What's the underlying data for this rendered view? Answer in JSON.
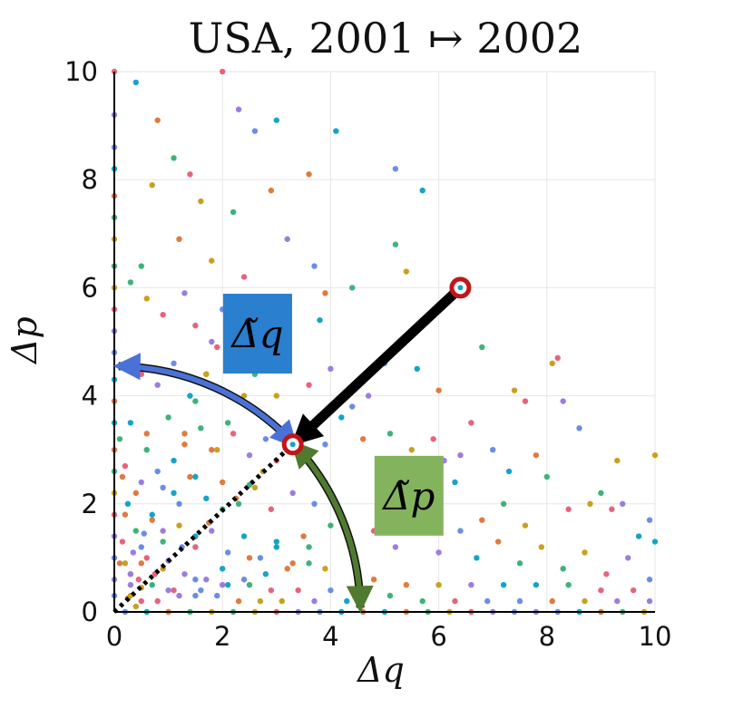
{
  "chart_data": {
    "type": "scatter",
    "title": "USA, 2001 ↦ 2002",
    "xlabel": "Δq",
    "ylabel": "Δp",
    "xlim": [
      0,
      10
    ],
    "ylim": [
      0,
      10
    ],
    "xticks": [
      "0",
      "2",
      "4",
      "6",
      "8",
      "10"
    ],
    "yticks": [
      "0",
      "2",
      "4",
      "6",
      "8",
      "10"
    ],
    "grid": true,
    "legend": "none",
    "palette": [
      "#e7637b",
      "#3db37a",
      "#13a5c7",
      "#9b7de0",
      "#c9a01f",
      "#e07a3f",
      "#6a8de8"
    ],
    "highlight_points": [
      {
        "x": 6.4,
        "y": 6.0
      },
      {
        "x": 3.3,
        "y": 3.1
      }
    ],
    "arrows": [
      {
        "from": [
          6.4,
          6.0
        ],
        "to": [
          3.35,
          3.15
        ],
        "color": "#000000"
      },
      {
        "center": [
          0,
          0
        ],
        "radius": 4.55,
        "from_deg": 43,
        "to_deg": 89,
        "color": "#4a72d6"
      },
      {
        "center": [
          0,
          0
        ],
        "radius": 4.55,
        "from_deg": 43,
        "to_deg": 1,
        "color": "#4f7a30"
      }
    ],
    "dotted_line": {
      "from": [
        0,
        0
      ],
      "to": [
        3.3,
        3.1
      ]
    },
    "annotations": [
      {
        "text": "Δ̃q",
        "x": 2.65,
        "y": 5.15,
        "color": "#2a7fce"
      },
      {
        "text": "Δ̃p",
        "x": 5.45,
        "y": 2.15,
        "color": "#84b35e"
      }
    ],
    "scatter_points": [
      {
        "x": 0.0,
        "y": 10.0
      },
      {
        "x": 0.0,
        "y": 9.2
      },
      {
        "x": 0.0,
        "y": 8.6
      },
      {
        "x": 0.0,
        "y": 8.2
      },
      {
        "x": 0.0,
        "y": 7.7
      },
      {
        "x": 0.0,
        "y": 7.3
      },
      {
        "x": 0.0,
        "y": 6.9
      },
      {
        "x": 0.0,
        "y": 6.4
      },
      {
        "x": 0.0,
        "y": 6.0
      },
      {
        "x": 0.0,
        "y": 5.6
      },
      {
        "x": 0.0,
        "y": 5.2
      },
      {
        "x": 0.0,
        "y": 4.8
      },
      {
        "x": 0.0,
        "y": 4.3
      },
      {
        "x": 0.0,
        "y": 3.9
      },
      {
        "x": 0.0,
        "y": 3.5
      },
      {
        "x": 0.0,
        "y": 3.0
      },
      {
        "x": 0.0,
        "y": 2.6
      },
      {
        "x": 0.0,
        "y": 2.2
      },
      {
        "x": 0.0,
        "y": 1.8
      },
      {
        "x": 0.0,
        "y": 1.4
      },
      {
        "x": 0.0,
        "y": 1.0
      },
      {
        "x": 0.0,
        "y": 0.6
      },
      {
        "x": 0.0,
        "y": 0.3
      },
      {
        "x": 0.4,
        "y": 9.8
      },
      {
        "x": 0.8,
        "y": 9.1
      },
      {
        "x": 1.1,
        "y": 8.4
      },
      {
        "x": 0.7,
        "y": 7.9
      },
      {
        "x": 1.4,
        "y": 8.1
      },
      {
        "x": 1.6,
        "y": 7.6
      },
      {
        "x": 2.0,
        "y": 10.0
      },
      {
        "x": 2.3,
        "y": 9.3
      },
      {
        "x": 2.6,
        "y": 8.9
      },
      {
        "x": 3.0,
        "y": 9.1
      },
      {
        "x": 2.9,
        "y": 7.8
      },
      {
        "x": 2.2,
        "y": 7.4
      },
      {
        "x": 1.2,
        "y": 6.9
      },
      {
        "x": 0.5,
        "y": 6.4
      },
      {
        "x": 1.8,
        "y": 6.5
      },
      {
        "x": 2.4,
        "y": 6.2
      },
      {
        "x": 3.2,
        "y": 6.9
      },
      {
        "x": 3.7,
        "y": 6.4
      },
      {
        "x": 4.1,
        "y": 8.9
      },
      {
        "x": 5.2,
        "y": 8.2
      },
      {
        "x": 5.7,
        "y": 7.8
      },
      {
        "x": 3.6,
        "y": 8.1
      },
      {
        "x": 0.3,
        "y": 6.1
      },
      {
        "x": 0.6,
        "y": 5.8
      },
      {
        "x": 0.9,
        "y": 5.5
      },
      {
        "x": 1.3,
        "y": 5.9
      },
      {
        "x": 1.5,
        "y": 5.3
      },
      {
        "x": 1.8,
        "y": 5.0
      },
      {
        "x": 2.0,
        "y": 5.6
      },
      {
        "x": 3.8,
        "y": 5.4
      },
      {
        "x": 3.9,
        "y": 5.9
      },
      {
        "x": 5.2,
        "y": 6.8
      },
      {
        "x": 5.4,
        "y": 6.3
      },
      {
        "x": 4.4,
        "y": 6.0
      },
      {
        "x": 0.2,
        "y": 4.6
      },
      {
        "x": 0.5,
        "y": 4.4
      },
      {
        "x": 0.8,
        "y": 4.2
      },
      {
        "x": 1.1,
        "y": 4.6
      },
      {
        "x": 1.4,
        "y": 4.0
      },
      {
        "x": 1.7,
        "y": 4.4
      },
      {
        "x": 2.0,
        "y": 4.1
      },
      {
        "x": 2.3,
        "y": 3.9
      },
      {
        "x": 2.6,
        "y": 4.4
      },
      {
        "x": 3.0,
        "y": 4.0
      },
      {
        "x": 3.6,
        "y": 4.2
      },
      {
        "x": 4.0,
        "y": 4.5
      },
      {
        "x": 4.4,
        "y": 3.8
      },
      {
        "x": 4.7,
        "y": 4.0
      },
      {
        "x": 5.0,
        "y": 4.6
      },
      {
        "x": 5.6,
        "y": 4.5
      },
      {
        "x": 6.0,
        "y": 4.1
      },
      {
        "x": 6.8,
        "y": 4.9
      },
      {
        "x": 7.4,
        "y": 4.1
      },
      {
        "x": 8.2,
        "y": 4.7
      },
      {
        "x": 8.1,
        "y": 4.6
      },
      {
        "x": 7.6,
        "y": 3.9
      },
      {
        "x": 8.3,
        "y": 3.9
      },
      {
        "x": 8.6,
        "y": 3.4
      },
      {
        "x": 0.3,
        "y": 3.5
      },
      {
        "x": 0.6,
        "y": 3.3
      },
      {
        "x": 1.0,
        "y": 3.6
      },
      {
        "x": 1.3,
        "y": 3.1
      },
      {
        "x": 1.6,
        "y": 3.4
      },
      {
        "x": 1.9,
        "y": 3.0
      },
      {
        "x": 2.2,
        "y": 3.3
      },
      {
        "x": 2.5,
        "y": 2.9
      },
      {
        "x": 2.8,
        "y": 3.2
      },
      {
        "x": 3.6,
        "y": 3.4
      },
      {
        "x": 3.9,
        "y": 3.1
      },
      {
        "x": 4.2,
        "y": 3.6
      },
      {
        "x": 4.6,
        "y": 3.2
      },
      {
        "x": 5.1,
        "y": 3.3
      },
      {
        "x": 5.5,
        "y": 3.0
      },
      {
        "x": 5.9,
        "y": 3.2
      },
      {
        "x": 6.1,
        "y": 2.8
      },
      {
        "x": 6.6,
        "y": 3.5
      },
      {
        "x": 6.4,
        "y": 2.9
      },
      {
        "x": 7.0,
        "y": 3.0
      },
      {
        "x": 7.3,
        "y": 2.6
      },
      {
        "x": 7.8,
        "y": 2.9
      },
      {
        "x": 8.0,
        "y": 2.5
      },
      {
        "x": 9.3,
        "y": 2.8
      },
      {
        "x": 9.0,
        "y": 2.2
      },
      {
        "x": 10.0,
        "y": 2.9
      },
      {
        "x": 0.2,
        "y": 2.7
      },
      {
        "x": 0.5,
        "y": 2.4
      },
      {
        "x": 0.8,
        "y": 2.6
      },
      {
        "x": 1.1,
        "y": 2.2
      },
      {
        "x": 1.4,
        "y": 2.5
      },
      {
        "x": 1.7,
        "y": 2.1
      },
      {
        "x": 2.0,
        "y": 2.4
      },
      {
        "x": 2.3,
        "y": 2.0
      },
      {
        "x": 2.6,
        "y": 2.3
      },
      {
        "x": 2.9,
        "y": 1.9
      },
      {
        "x": 3.3,
        "y": 2.2
      },
      {
        "x": 3.7,
        "y": 2.0
      },
      {
        "x": 3.9,
        "y": 2.4
      },
      {
        "x": 5.8,
        "y": 2.2
      },
      {
        "x": 6.3,
        "y": 2.4
      },
      {
        "x": 6.8,
        "y": 1.7
      },
      {
        "x": 7.2,
        "y": 2.0
      },
      {
        "x": 7.6,
        "y": 1.6
      },
      {
        "x": 8.4,
        "y": 1.9
      },
      {
        "x": 8.8,
        "y": 2.0
      },
      {
        "x": 9.2,
        "y": 1.9
      },
      {
        "x": 9.4,
        "y": 2.0
      },
      {
        "x": 9.9,
        "y": 1.7
      },
      {
        "x": 9.7,
        "y": 1.4
      },
      {
        "x": 0.2,
        "y": 1.8
      },
      {
        "x": 0.4,
        "y": 1.5
      },
      {
        "x": 0.7,
        "y": 1.7
      },
      {
        "x": 0.9,
        "y": 1.3
      },
      {
        "x": 1.2,
        "y": 1.6
      },
      {
        "x": 1.5,
        "y": 1.2
      },
      {
        "x": 1.8,
        "y": 1.5
      },
      {
        "x": 2.1,
        "y": 1.1
      },
      {
        "x": 2.4,
        "y": 1.4
      },
      {
        "x": 2.7,
        "y": 1.0
      },
      {
        "x": 3.0,
        "y": 1.3
      },
      {
        "x": 3.3,
        "y": 0.9
      },
      {
        "x": 3.6,
        "y": 1.2
      },
      {
        "x": 3.9,
        "y": 0.8
      },
      {
        "x": 4.8,
        "y": 1.5
      },
      {
        "x": 5.2,
        "y": 1.2
      },
      {
        "x": 5.6,
        "y": 1.6
      },
      {
        "x": 6.0,
        "y": 1.1
      },
      {
        "x": 6.4,
        "y": 1.5
      },
      {
        "x": 6.7,
        "y": 1.0
      },
      {
        "x": 7.1,
        "y": 1.3
      },
      {
        "x": 7.5,
        "y": 0.9
      },
      {
        "x": 7.9,
        "y": 1.2
      },
      {
        "x": 8.3,
        "y": 0.8
      },
      {
        "x": 8.7,
        "y": 1.1
      },
      {
        "x": 9.1,
        "y": 0.7
      },
      {
        "x": 9.5,
        "y": 1.0
      },
      {
        "x": 9.9,
        "y": 0.6
      },
      {
        "x": 10.0,
        "y": 1.3
      },
      {
        "x": 0.1,
        "y": 0.9
      },
      {
        "x": 0.3,
        "y": 0.7
      },
      {
        "x": 0.5,
        "y": 0.9
      },
      {
        "x": 0.7,
        "y": 0.5
      },
      {
        "x": 0.9,
        "y": 0.8
      },
      {
        "x": 1.1,
        "y": 0.4
      },
      {
        "x": 1.3,
        "y": 0.7
      },
      {
        "x": 1.5,
        "y": 0.3
      },
      {
        "x": 1.7,
        "y": 0.6
      },
      {
        "x": 1.9,
        "y": 0.3
      },
      {
        "x": 2.1,
        "y": 0.5
      },
      {
        "x": 2.3,
        "y": 0.2
      },
      {
        "x": 2.5,
        "y": 0.5
      },
      {
        "x": 2.7,
        "y": 0.2
      },
      {
        "x": 2.9,
        "y": 0.4
      },
      {
        "x": 3.1,
        "y": 0.2
      },
      {
        "x": 3.4,
        "y": 0.4
      },
      {
        "x": 3.7,
        "y": 0.2
      },
      {
        "x": 4.0,
        "y": 0.4
      },
      {
        "x": 4.3,
        "y": 0.2
      },
      {
        "x": 4.8,
        "y": 0.6
      },
      {
        "x": 5.1,
        "y": 0.3
      },
      {
        "x": 5.4,
        "y": 0.5
      },
      {
        "x": 5.7,
        "y": 0.2
      },
      {
        "x": 6.0,
        "y": 0.5
      },
      {
        "x": 6.3,
        "y": 0.2
      },
      {
        "x": 6.6,
        "y": 0.5
      },
      {
        "x": 6.9,
        "y": 0.2
      },
      {
        "x": 7.2,
        "y": 0.5
      },
      {
        "x": 7.5,
        "y": 0.2
      },
      {
        "x": 7.8,
        "y": 0.5
      },
      {
        "x": 8.1,
        "y": 0.2
      },
      {
        "x": 8.4,
        "y": 0.5
      },
      {
        "x": 8.7,
        "y": 0.2
      },
      {
        "x": 9.0,
        "y": 0.4
      },
      {
        "x": 9.3,
        "y": 0.2
      },
      {
        "x": 9.6,
        "y": 0.4
      },
      {
        "x": 9.9,
        "y": 0.2
      },
      {
        "x": 0.2,
        "y": 0.0
      },
      {
        "x": 0.6,
        "y": 0.0
      },
      {
        "x": 1.0,
        "y": 0.0
      },
      {
        "x": 1.4,
        "y": 0.0
      },
      {
        "x": 1.8,
        "y": 0.0
      },
      {
        "x": 2.2,
        "y": 0.0
      },
      {
        "x": 2.6,
        "y": 0.0
      },
      {
        "x": 3.0,
        "y": 0.0
      },
      {
        "x": 3.4,
        "y": 0.0
      },
      {
        "x": 3.8,
        "y": 0.0
      },
      {
        "x": 4.2,
        "y": 0.0
      },
      {
        "x": 4.6,
        "y": 0.0
      },
      {
        "x": 5.0,
        "y": 0.0
      },
      {
        "x": 5.4,
        "y": 0.0
      },
      {
        "x": 5.8,
        "y": 0.0
      },
      {
        "x": 6.2,
        "y": 0.0
      },
      {
        "x": 6.6,
        "y": 0.0
      },
      {
        "x": 7.0,
        "y": 0.0
      },
      {
        "x": 7.4,
        "y": 0.0
      },
      {
        "x": 7.8,
        "y": 0.0
      },
      {
        "x": 8.2,
        "y": 0.0
      },
      {
        "x": 8.6,
        "y": 0.0
      },
      {
        "x": 9.0,
        "y": 0.0
      },
      {
        "x": 9.4,
        "y": 0.0
      },
      {
        "x": 9.8,
        "y": 0.0
      },
      {
        "x": 0.25,
        "y": 0.25
      },
      {
        "x": 0.5,
        "y": 0.45
      },
      {
        "x": 0.75,
        "y": 0.7
      },
      {
        "x": 1.0,
        "y": 0.95
      },
      {
        "x": 1.25,
        "y": 1.2
      },
      {
        "x": 1.5,
        "y": 1.4
      },
      {
        "x": 1.75,
        "y": 1.65
      },
      {
        "x": 2.0,
        "y": 1.9
      },
      {
        "x": 2.25,
        "y": 2.1
      },
      {
        "x": 2.5,
        "y": 2.35
      },
      {
        "x": 2.75,
        "y": 2.6
      },
      {
        "x": 3.0,
        "y": 2.8
      },
      {
        "x": 0.3,
        "y": 0.7
      },
      {
        "x": 0.5,
        "y": 1.2
      },
      {
        "x": 0.7,
        "y": 1.8
      },
      {
        "x": 0.9,
        "y": 2.3
      },
      {
        "x": 1.1,
        "y": 2.8
      },
      {
        "x": 1.3,
        "y": 3.3
      },
      {
        "x": 1.5,
        "y": 3.9
      },
      {
        "x": 1.7,
        "y": 4.4
      },
      {
        "x": 1.9,
        "y": 4.9
      },
      {
        "x": 0.3,
        "y": 0.5
      },
      {
        "x": 0.6,
        "y": 1.0
      },
      {
        "x": 0.9,
        "y": 1.5
      },
      {
        "x": 1.2,
        "y": 2.0
      },
      {
        "x": 1.5,
        "y": 2.5
      },
      {
        "x": 1.8,
        "y": 3.0
      },
      {
        "x": 2.1,
        "y": 3.5
      },
      {
        "x": 2.4,
        "y": 4.0
      },
      {
        "x": 2.7,
        "y": 4.5
      },
      {
        "x": 3.0,
        "y": 5.0
      },
      {
        "x": 0.5,
        "y": 0.2
      },
      {
        "x": 1.0,
        "y": 0.4
      },
      {
        "x": 1.5,
        "y": 0.6
      },
      {
        "x": 2.0,
        "y": 0.8
      },
      {
        "x": 2.5,
        "y": 1.0
      },
      {
        "x": 3.0,
        "y": 1.2
      },
      {
        "x": 3.5,
        "y": 1.4
      },
      {
        "x": 4.0,
        "y": 1.6
      },
      {
        "x": 0.4,
        "y": 0.1
      },
      {
        "x": 0.8,
        "y": 0.2
      },
      {
        "x": 1.2,
        "y": 0.3
      },
      {
        "x": 1.6,
        "y": 0.4
      },
      {
        "x": 2.0,
        "y": 0.5
      },
      {
        "x": 2.4,
        "y": 0.6
      },
      {
        "x": 2.8,
        "y": 0.7
      },
      {
        "x": 3.2,
        "y": 0.8
      },
      {
        "x": 3.6,
        "y": 0.9
      },
      {
        "x": 0.3,
        "y": 0.3
      },
      {
        "x": 0.45,
        "y": 0.6
      },
      {
        "x": 0.2,
        "y": 0.9
      },
      {
        "x": 0.15,
        "y": 1.3
      },
      {
        "x": 0.35,
        "y": 1.1
      },
      {
        "x": 0.55,
        "y": 1.45
      },
      {
        "x": 0.25,
        "y": 2.0
      },
      {
        "x": 0.4,
        "y": 2.2
      },
      {
        "x": 0.6,
        "y": 3.0
      },
      {
        "x": 0.15,
        "y": 2.5
      },
      {
        "x": 0.1,
        "y": 3.2
      }
    ]
  }
}
